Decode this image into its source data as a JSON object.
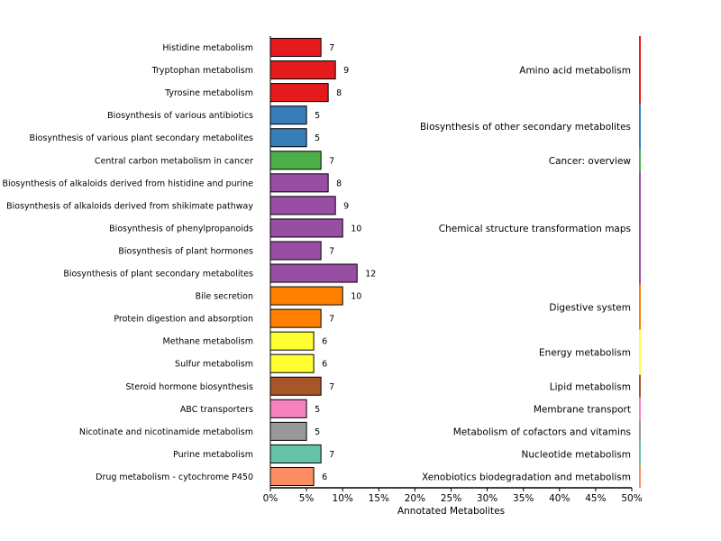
{
  "chart_data": {
    "type": "bar",
    "orientation": "horizontal",
    "xlabel": "Annotated Metabolites",
    "xlim": [
      0,
      50
    ],
    "xticks": [
      "0%",
      "5%",
      "10%",
      "15%",
      "20%",
      "25%",
      "30%",
      "35%",
      "40%",
      "45%",
      "50%"
    ],
    "grid": false,
    "legend": "none",
    "bars": [
      {
        "label": "Histidine metabolism",
        "value": 7,
        "group": "Amino acid metabolism"
      },
      {
        "label": "Tryptophan metabolism",
        "value": 9,
        "group": "Amino acid metabolism"
      },
      {
        "label": "Tyrosine metabolism",
        "value": 8,
        "group": "Amino acid metabolism"
      },
      {
        "label": "Biosynthesis of various antibiotics",
        "value": 5,
        "group": "Biosynthesis of other secondary metabolites"
      },
      {
        "label": "Biosynthesis of various plant secondary metabolites",
        "value": 5,
        "group": "Biosynthesis of other secondary metabolites"
      },
      {
        "label": "Central carbon metabolism in cancer",
        "value": 7,
        "group": "Cancer: overview"
      },
      {
        "label": "Biosynthesis of alkaloids derived from histidine and purine",
        "value": 8,
        "group": "Chemical structure transformation maps"
      },
      {
        "label": "Biosynthesis of alkaloids derived from shikimate pathway",
        "value": 9,
        "group": "Chemical structure transformation maps"
      },
      {
        "label": "Biosynthesis of phenylpropanoids",
        "value": 10,
        "group": "Chemical structure transformation maps"
      },
      {
        "label": "Biosynthesis of plant hormones",
        "value": 7,
        "group": "Chemical structure transformation maps"
      },
      {
        "label": "Biosynthesis of plant secondary metabolites",
        "value": 12,
        "group": "Chemical structure transformation maps"
      },
      {
        "label": "Bile secretion",
        "value": 10,
        "group": "Digestive system"
      },
      {
        "label": "Protein digestion and absorption",
        "value": 7,
        "group": "Digestive system"
      },
      {
        "label": "Methane metabolism",
        "value": 6,
        "group": "Energy metabolism"
      },
      {
        "label": "Sulfur metabolism",
        "value": 6,
        "group": "Energy metabolism"
      },
      {
        "label": "Steroid hormone biosynthesis",
        "value": 7,
        "group": "Lipid metabolism"
      },
      {
        "label": "ABC transporters",
        "value": 5,
        "group": "Membrane transport"
      },
      {
        "label": "Nicotinate and nicotinamide metabolism",
        "value": 5,
        "group": "Metabolism of cofactors and vitamins"
      },
      {
        "label": "Purine metabolism",
        "value": 7,
        "group": "Nucleotide metabolism"
      },
      {
        "label": "Drug metabolism - cytochrome P450",
        "value": 6,
        "group": "Xenobiotics biodegradation and metabolism"
      }
    ],
    "groups": [
      {
        "name": "Amino acid metabolism",
        "color": "#e41a1c"
      },
      {
        "name": "Biosynthesis of other secondary metabolites",
        "color": "#377eb8"
      },
      {
        "name": "Cancer: overview",
        "color": "#4daf4a"
      },
      {
        "name": "Chemical structure transformation maps",
        "color": "#984ea3"
      },
      {
        "name": "Digestive system",
        "color": "#ff7f00"
      },
      {
        "name": "Energy metabolism",
        "color": "#ffff33"
      },
      {
        "name": "Lipid metabolism",
        "color": "#a65628"
      },
      {
        "name": "Membrane transport",
        "color": "#f781bf"
      },
      {
        "name": "Metabolism of cofactors and vitamins",
        "color": "#999999"
      },
      {
        "name": "Nucleotide metabolism",
        "color": "#66c2a5"
      },
      {
        "name": "Xenobiotics biodegradation and metabolism",
        "color": "#fc8d62"
      }
    ]
  }
}
